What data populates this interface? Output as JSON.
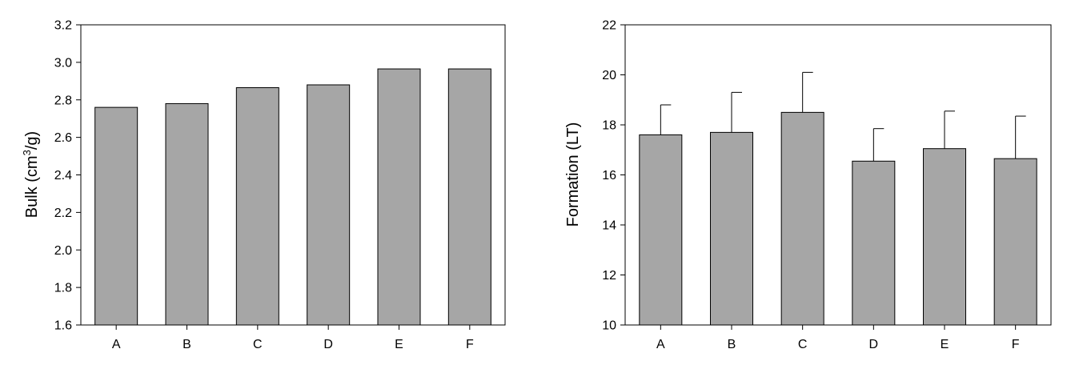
{
  "chart_data": [
    {
      "type": "bar",
      "categories": [
        "A",
        "B",
        "C",
        "D",
        "E",
        "F"
      ],
      "values": [
        2.76,
        2.78,
        2.865,
        2.88,
        2.965,
        2.965
      ],
      "title": "",
      "xlabel": "",
      "ylabel": "Bulk (cm3/g)",
      "ylabel_parts": {
        "pre": "Bulk (cm",
        "sup": "3",
        "post": "/g)"
      },
      "ylim": [
        1.6,
        3.2
      ],
      "yticks": [
        "1.6",
        "1.8",
        "2.0",
        "2.2",
        "2.4",
        "2.6",
        "2.8",
        "3.0",
        "3.2"
      ],
      "bar_color": "#a6a6a6",
      "grid": false
    },
    {
      "type": "bar",
      "categories": [
        "A",
        "B",
        "C",
        "D",
        "E",
        "F"
      ],
      "values": [
        17.6,
        17.7,
        18.5,
        16.55,
        17.05,
        16.65
      ],
      "errors": [
        1.2,
        1.6,
        1.6,
        1.3,
        1.5,
        1.7
      ],
      "title": "",
      "xlabel": "",
      "ylabel": "Formation (LT)",
      "ylim": [
        10,
        22
      ],
      "yticks": [
        "10",
        "12",
        "14",
        "16",
        "18",
        "20",
        "22"
      ],
      "bar_color": "#a6a6a6",
      "grid": false
    }
  ]
}
